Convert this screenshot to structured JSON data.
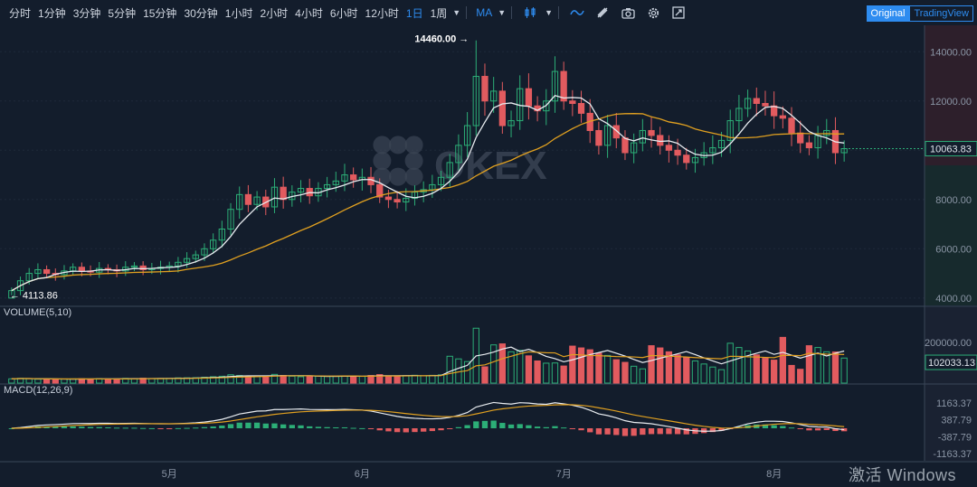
{
  "toolbar": {
    "intervals": [
      "分时",
      "1分钟",
      "3分钟",
      "5分钟",
      "15分钟",
      "30分钟",
      "1小时",
      "2小时",
      "4小时",
      "6小时",
      "12小时",
      "1日",
      "1周"
    ],
    "active_interval": "1日",
    "indicator_label": "MA",
    "modes": [
      "Original",
      "TradingView"
    ],
    "active_mode": "Original",
    "icons": [
      "candle-type-icon",
      "indicator-wave-icon",
      "drawing-tool-icon",
      "camera-icon",
      "settings-gear-icon",
      "fullscreen-icon"
    ]
  },
  "watermark": "OKEX",
  "os_watermark": "激活 Windows",
  "annotations": {
    "high_label": "14460.00",
    "low_label": "4113.86"
  },
  "price_axis": {
    "ticks": [
      "14000.00",
      "12000.00",
      "10000.00",
      "8000.00",
      "6000.00",
      "4000.00"
    ],
    "current": "10063.83"
  },
  "volume_panel": {
    "title": "VOLUME(5,10)",
    "ticks": [
      "200000.00"
    ],
    "current": "102033.13"
  },
  "macd_panel": {
    "title": "MACD(12,26,9)",
    "ticks": [
      "1163.37",
      "387.79",
      "-387.79",
      "-1163.37"
    ]
  },
  "date_axis": [
    "5月",
    "6月",
    "7月",
    "8月"
  ],
  "colors": {
    "up": "#2cae77",
    "down": "#e25b5f",
    "ma_fast": "#e8ecf0",
    "ma_slow": "#e0a020",
    "grid": "#1e2a3a",
    "accent": "#2e8cf0"
  },
  "chart_data": {
    "type": "candlestick",
    "xlabel": "",
    "ylabel": "",
    "ylim": [
      3700,
      15000
    ],
    "close_series": [
      4300,
      4700,
      5000,
      5150,
      5000,
      4950,
      5100,
      5250,
      5100,
      5050,
      5200,
      5150,
      5100,
      5250,
      5300,
      5150,
      5200,
      5250,
      5300,
      5450,
      5600,
      5750,
      6000,
      6350,
      6800,
      7600,
      8200,
      7800,
      8100,
      7700,
      8500,
      8000,
      8300,
      8450,
      8150,
      8450,
      8600,
      8750,
      9000,
      8800,
      8900,
      8600,
      8100,
      8000,
      7900,
      8050,
      8300,
      8400,
      8600,
      8900,
      9500,
      10200,
      11000,
      13000,
      12000,
      12400,
      11000,
      11200,
      12500,
      11800,
      11600,
      12000,
      13200,
      12000,
      11900,
      11500,
      10800,
      10200,
      11000,
      10500,
      9900,
      10300,
      10800,
      10600,
      10200,
      10000,
      9800,
      9500,
      9700,
      9900,
      10100,
      10400,
      11200,
      11700,
      12100,
      11900,
      11800,
      11400,
      11300,
      10700,
      10300,
      10100,
      10600,
      10800,
      9900,
      10064
    ],
    "month_labels_index": {
      "5月": 18,
      "6月": 40,
      "7月": 63,
      "8月": 87
    },
    "high_annotation": 14460.0,
    "low_annotation": 4113.86,
    "volume_ylim": [
      0,
      320000
    ],
    "macd_ylim": [
      -1500,
      1500
    ]
  }
}
